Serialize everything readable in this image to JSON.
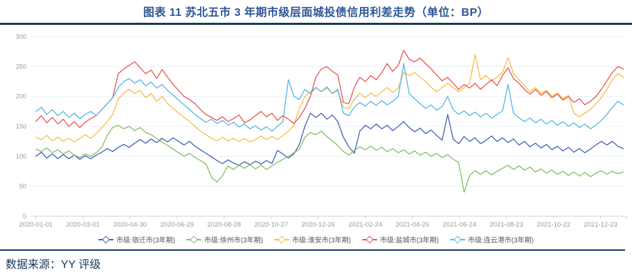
{
  "title": "图表 11 苏北五市 3 年期市级层面城投债信用利差走势（单位：BP）",
  "source": "数据来源：YY 评级",
  "colors": {
    "title_text": "#2e5597",
    "divider": "#17375e",
    "axis_label": "#999999",
    "axis_line": "#ccd2d9",
    "grid_line": "#e9eef5",
    "legend_text": "#555555"
  },
  "chart_data": {
    "type": "line",
    "title": "图表 11 苏北五市 3 年期市级层面城投债信用利差走势（单位：BP）",
    "ylabel": "",
    "xlabel": "",
    "ylim": [
      0,
      300
    ],
    "grid": true,
    "legend_position": "bottom",
    "y_ticks": [
      0,
      50,
      100,
      150,
      200,
      250,
      300
    ],
    "x_tick_labels": [
      "2020-01-01",
      "2020-03-01",
      "2020-04-30",
      "2020-06-29",
      "2020-08-28",
      "2020-10-27",
      "2020-12-26",
      "2021-02-24",
      "2021-04-25",
      "2021-06-24",
      "2021-08-23",
      "2021-10-22",
      "2021-12-23"
    ],
    "x_tick_interval_days": 60,
    "sample_step_days": 7,
    "units": "BP",
    "series": [
      {
        "name": "市级:宿迁市(3年期)",
        "color": "#4160b4",
        "values": [
          100,
          107,
          97,
          104,
          96,
          103,
          96,
          102,
          95,
          101,
          96,
          102,
          107,
          113,
          108,
          115,
          120,
          115,
          122,
          128,
          122,
          129,
          123,
          130,
          124,
          131,
          125,
          119,
          125,
          117,
          111,
          105,
          99,
          93,
          88,
          94,
          89,
          85,
          91,
          86,
          92,
          87,
          93,
          88,
          110,
          104,
          97,
          104,
          120,
          150,
          172,
          165,
          172,
          162,
          169,
          158,
          132,
          116,
          105,
          142,
          152,
          146,
          154,
          146,
          152,
          143,
          150,
          158,
          148,
          141,
          147,
          138,
          144,
          135,
          127,
          170,
          129,
          121,
          133,
          125,
          131,
          121,
          127,
          134,
          125,
          131,
          123,
          129,
          119,
          125,
          116,
          122,
          114,
          120,
          111,
          117,
          109,
          115,
          107,
          113,
          106,
          112,
          119,
          125,
          119,
          125,
          117,
          113
        ]
      },
      {
        "name": "市级:徐州市(3年期)",
        "color": "#7fbe63",
        "values": [
          112,
          108,
          114,
          106,
          111,
          104,
          109,
          102,
          98,
          104,
          100,
          106,
          115,
          135,
          148,
          152,
          146,
          150,
          143,
          148,
          140,
          136,
          130,
          124,
          118,
          112,
          106,
          100,
          105,
          98,
          93,
          87,
          65,
          57,
          68,
          84,
          78,
          85,
          80,
          86,
          79,
          85,
          78,
          84,
          90,
          95,
          100,
          106,
          112,
          132,
          140,
          136,
          142,
          133,
          126,
          118,
          108,
          102,
          110,
          116,
          111,
          117,
          110,
          115,
          108,
          113,
          106,
          111,
          104,
          109,
          102,
          107,
          100,
          105,
          98,
          103,
          95,
          90,
          40,
          68,
          76,
          70,
          76,
          69,
          75,
          80,
          85,
          78,
          84,
          77,
          82,
          74,
          79,
          72,
          77,
          70,
          75,
          68,
          74,
          67,
          73,
          66,
          72,
          76,
          70,
          75,
          71,
          74
        ]
      },
      {
        "name": "市级:淮安市(3年期)",
        "color": "#f7bc44",
        "values": [
          132,
          128,
          135,
          126,
          132,
          125,
          130,
          124,
          130,
          136,
          130,
          138,
          148,
          158,
          170,
          196,
          205,
          212,
          205,
          210,
          198,
          205,
          192,
          200,
          188,
          180,
          172,
          165,
          158,
          150,
          142,
          136,
          130,
          126,
          132,
          126,
          130,
          125,
          130,
          124,
          128,
          134,
          128,
          133,
          128,
          135,
          142,
          152,
          180,
          200,
          208,
          215,
          208,
          214,
          205,
          210,
          182,
          180,
          195,
          205,
          198,
          206,
          200,
          208,
          215,
          207,
          214,
          240,
          235,
          240,
          232,
          225,
          215,
          208,
          215,
          222,
          215,
          208,
          215,
          222,
          270,
          228,
          235,
          226,
          232,
          240,
          265,
          238,
          228,
          218,
          208,
          215,
          205,
          210,
          200,
          206,
          196,
          202,
          172,
          166,
          172,
          178,
          188,
          198,
          212,
          228,
          238,
          232
        ]
      },
      {
        "name": "市级:盐城市(3年期)",
        "color": "#e8534e",
        "values": [
          158,
          168,
          156,
          165,
          154,
          162,
          150,
          158,
          148,
          157,
          163,
          168,
          178,
          188,
          198,
          238,
          246,
          252,
          258,
          248,
          238,
          244,
          230,
          245,
          232,
          220,
          210,
          200,
          195,
          188,
          178,
          170,
          165,
          160,
          166,
          158,
          163,
          169,
          156,
          161,
          168,
          175,
          166,
          172,
          160,
          168,
          162,
          155,
          165,
          180,
          200,
          232,
          246,
          250,
          242,
          236,
          190,
          188,
          215,
          232,
          225,
          235,
          228,
          240,
          255,
          242,
          252,
          277,
          262,
          258,
          264,
          255,
          246,
          236,
          226,
          232,
          222,
          212,
          220,
          214,
          222,
          212,
          220,
          228,
          218,
          235,
          248,
          230,
          222,
          212,
          204,
          212,
          202,
          208,
          198,
          204,
          194,
          200,
          190,
          196,
          186,
          192,
          200,
          212,
          226,
          240,
          250,
          246
        ]
      },
      {
        "name": "市级:连云港市(3年期)",
        "color": "#54b4e4",
        "values": [
          175,
          182,
          170,
          178,
          168,
          175,
          165,
          172,
          163,
          170,
          175,
          168,
          178,
          188,
          198,
          215,
          225,
          230,
          222,
          228,
          218,
          224,
          214,
          220,
          210,
          202,
          194,
          186,
          178,
          170,
          163,
          157,
          162,
          155,
          160,
          152,
          157,
          149,
          154,
          146,
          151,
          144,
          149,
          142,
          150,
          158,
          228,
          200,
          195,
          212,
          205,
          215,
          208,
          216,
          205,
          212,
          172,
          168,
          182,
          190,
          184,
          192,
          185,
          193,
          186,
          192,
          200,
          255,
          205,
          196,
          188,
          180,
          186,
          177,
          183,
          200,
          178,
          170,
          176,
          168,
          174,
          166,
          172,
          164,
          170,
          176,
          220,
          172,
          164,
          158,
          164,
          156,
          162,
          154,
          160,
          152,
          158,
          150,
          156,
          148,
          154,
          146,
          152,
          160,
          170,
          182,
          192,
          186
        ]
      }
    ]
  }
}
